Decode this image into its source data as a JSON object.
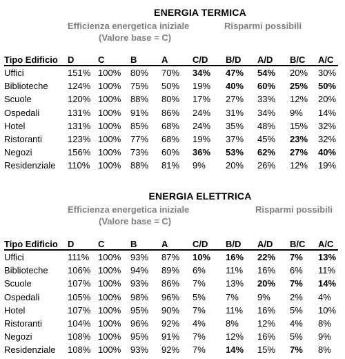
{
  "sections": [
    {
      "title": "ENERGIA TERMICA",
      "efficiency_label": "Efficienza energetica iniziale",
      "base_label": "(Valore base = C)",
      "savings_label": "Risparmi possibili",
      "columns": [
        "Tipo Edificio",
        "D",
        "C",
        "B",
        "A",
        "C/D",
        "B/D",
        "A/D",
        "B/C",
        "A/C"
      ],
      "rows": [
        {
          "name": "Uffici",
          "cells": [
            "151%",
            "100%",
            "80%",
            "70%",
            "34%",
            "47%",
            "54%",
            "20%",
            "30%"
          ],
          "bold": [
            4,
            5,
            6
          ]
        },
        {
          "name": "Biblioteche",
          "cells": [
            "124%",
            "100%",
            "75%",
            "50%",
            "19%",
            "40%",
            "60%",
            "25%",
            "50%"
          ],
          "bold": [
            5,
            6,
            7,
            8
          ]
        },
        {
          "name": "Scuole",
          "cells": [
            "120%",
            "100%",
            "88%",
            "80%",
            "17%",
            "27%",
            "33%",
            "12%",
            "20%"
          ],
          "bold": []
        },
        {
          "name": "Ospedali",
          "cells": [
            "131%",
            "100%",
            "91%",
            "86%",
            "24%",
            "31%",
            "34%",
            "9%",
            "14%"
          ],
          "bold": []
        },
        {
          "name": "Hotel",
          "cells": [
            "131%",
            "100%",
            "85%",
            "68%",
            "24%",
            "35%",
            "48%",
            "15%",
            "32%"
          ],
          "bold": []
        },
        {
          "name": "Ristoranti",
          "cells": [
            "123%",
            "100%",
            "77%",
            "68%",
            "19%",
            "37%",
            "45%",
            "23%",
            "32%"
          ],
          "bold": [
            7
          ]
        },
        {
          "name": "Negozi",
          "cells": [
            "156%",
            "100%",
            "73%",
            "60%",
            "36%",
            "53%",
            "62%",
            "27%",
            "40%"
          ],
          "bold": [
            4,
            5,
            6,
            7,
            8
          ]
        },
        {
          "name": "Residenziale",
          "cells": [
            "110%",
            "100%",
            "88%",
            "81%",
            "9%",
            "20%",
            "26%",
            "12%",
            "19%"
          ],
          "bold": []
        }
      ]
    },
    {
      "title": "ENERGIA ELETTRICA",
      "efficiency_label": "Efficienza energetica iniziale",
      "base_label": "(Valore base = C)",
      "savings_label": "Risparmi possibili",
      "columns": [
        "Tipo Edificio",
        "D",
        "C",
        "B",
        "A",
        "C/D",
        "B/D",
        "A/D",
        "B/C",
        "A/C"
      ],
      "rows": [
        {
          "name": "Uffici",
          "cells": [
            "111%",
            "100%",
            "93%",
            "87%",
            "10%",
            "16%",
            "22%",
            "7%",
            "13%"
          ],
          "bold": [
            4,
            5,
            6,
            7,
            8
          ]
        },
        {
          "name": "Biblioteche",
          "cells": [
            "106%",
            "100%",
            "94%",
            "89%",
            "6%",
            "11%",
            "16%",
            "6%",
            "11%"
          ],
          "bold": []
        },
        {
          "name": "Scuole",
          "cells": [
            "107%",
            "100%",
            "93%",
            "86%",
            "7%",
            "13%",
            "20%",
            "7%",
            "14%"
          ],
          "bold": [
            6,
            7,
            8
          ]
        },
        {
          "name": "Ospedali",
          "cells": [
            "105%",
            "100%",
            "98%",
            "96%",
            "5%",
            "7%",
            "9%",
            "2%",
            "4%"
          ],
          "bold": []
        },
        {
          "name": "Hotel",
          "cells": [
            "107%",
            "100%",
            "95%",
            "90%",
            "7%",
            "11%",
            "16%",
            "5%",
            "10%"
          ],
          "bold": []
        },
        {
          "name": "Ristoranti",
          "cells": [
            "104%",
            "100%",
            "96%",
            "92%",
            "4%",
            "8%",
            "12%",
            "4%",
            "8%"
          ],
          "bold": []
        },
        {
          "name": "Negozi",
          "cells": [
            "108%",
            "100%",
            "95%",
            "91%",
            "7%",
            "12%",
            "16%",
            "5%",
            "9%"
          ],
          "bold": []
        },
        {
          "name": "Residenziale",
          "cells": [
            "108%",
            "100%",
            "93%",
            "92%",
            "7%",
            "14%",
            "15%",
            "7%",
            "8%"
          ],
          "bold": [
            5,
            7
          ]
        }
      ]
    }
  ]
}
